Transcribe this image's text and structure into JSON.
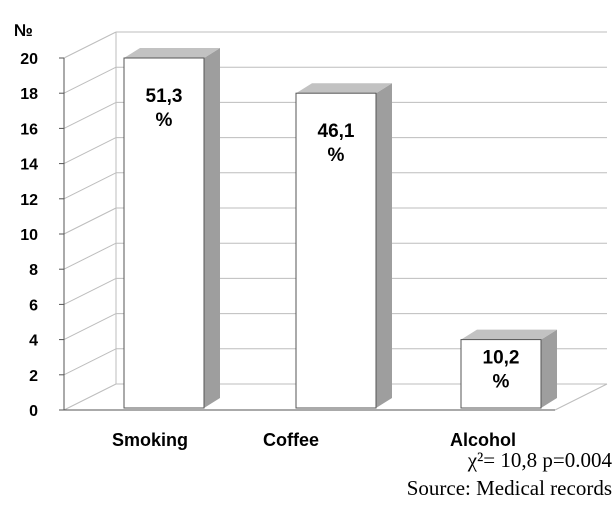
{
  "chart_data": {
    "type": "bar",
    "y_axis_title": "№",
    "categories": [
      "Smoking",
      "Coffee",
      "Alcohol"
    ],
    "values": [
      20,
      18,
      4
    ],
    "data_labels": [
      [
        "51,3",
        "%"
      ],
      [
        "46,1",
        "%"
      ],
      [
        "10,2",
        "%"
      ]
    ],
    "ylim": [
      0,
      20
    ],
    "yticks": [
      0,
      2,
      4,
      6,
      8,
      10,
      12,
      14,
      16,
      18,
      20
    ],
    "grid": true,
    "style": "3d-column",
    "colors": {
      "bar_front": "#ffffff",
      "bar_side": "#9e9e9e",
      "bar_top": "#c2c2c2",
      "grid": "#bdbdbd",
      "axis": "#555555",
      "text": "#000000"
    }
  },
  "footer": {
    "stats": "χ²= 10,8    p=0.004",
    "source": "Source: Medical records"
  }
}
